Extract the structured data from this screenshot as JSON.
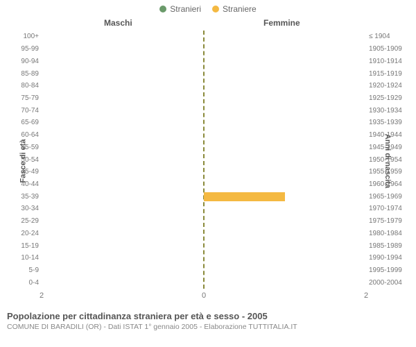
{
  "legend": {
    "male": {
      "label": "Stranieri",
      "color": "#6a9a6a"
    },
    "female": {
      "label": "Straniere",
      "color": "#f4b942"
    }
  },
  "columns": {
    "left": "Maschi",
    "right": "Femmine"
  },
  "axes": {
    "left_label": "Fasce di età",
    "right_label": "Anni di nascita",
    "x_max": 2,
    "x_ticks": [
      2,
      0,
      2
    ]
  },
  "style": {
    "center_line_color": "#8a8a3a",
    "tick_color": "#777777",
    "header_color": "#555555",
    "background": "#ffffff",
    "bar_height_pct": 72
  },
  "rows": [
    {
      "age": "100+",
      "birth": "≤ 1904",
      "m": 0,
      "f": 0
    },
    {
      "age": "95-99",
      "birth": "1905-1909",
      "m": 0,
      "f": 0
    },
    {
      "age": "90-94",
      "birth": "1910-1914",
      "m": 0,
      "f": 0
    },
    {
      "age": "85-89",
      "birth": "1915-1919",
      "m": 0,
      "f": 0
    },
    {
      "age": "80-84",
      "birth": "1920-1924",
      "m": 0,
      "f": 0
    },
    {
      "age": "75-79",
      "birth": "1925-1929",
      "m": 0,
      "f": 0
    },
    {
      "age": "70-74",
      "birth": "1930-1934",
      "m": 0,
      "f": 0
    },
    {
      "age": "65-69",
      "birth": "1935-1939",
      "m": 0,
      "f": 0
    },
    {
      "age": "60-64",
      "birth": "1940-1944",
      "m": 0,
      "f": 0
    },
    {
      "age": "55-59",
      "birth": "1945-1949",
      "m": 0,
      "f": 0
    },
    {
      "age": "50-54",
      "birth": "1950-1954",
      "m": 0,
      "f": 0
    },
    {
      "age": "45-49",
      "birth": "1955-1959",
      "m": 0,
      "f": 0
    },
    {
      "age": "40-44",
      "birth": "1960-1964",
      "m": 0,
      "f": 0
    },
    {
      "age": "35-39",
      "birth": "1965-1969",
      "m": 0,
      "f": 1
    },
    {
      "age": "30-34",
      "birth": "1970-1974",
      "m": 0,
      "f": 0
    },
    {
      "age": "25-29",
      "birth": "1975-1979",
      "m": 0,
      "f": 0
    },
    {
      "age": "20-24",
      "birth": "1980-1984",
      "m": 0,
      "f": 0
    },
    {
      "age": "15-19",
      "birth": "1985-1989",
      "m": 0,
      "f": 0
    },
    {
      "age": "10-14",
      "birth": "1990-1994",
      "m": 0,
      "f": 0
    },
    {
      "age": "5-9",
      "birth": "1995-1999",
      "m": 0,
      "f": 0
    },
    {
      "age": "0-4",
      "birth": "2000-2004",
      "m": 0,
      "f": 0
    }
  ],
  "footer": {
    "title": "Popolazione per cittadinanza straniera per età e sesso - 2005",
    "subtitle": "COMUNE DI BARADILI (OR) - Dati ISTAT 1° gennaio 2005 - Elaborazione TUTTITALIA.IT"
  }
}
